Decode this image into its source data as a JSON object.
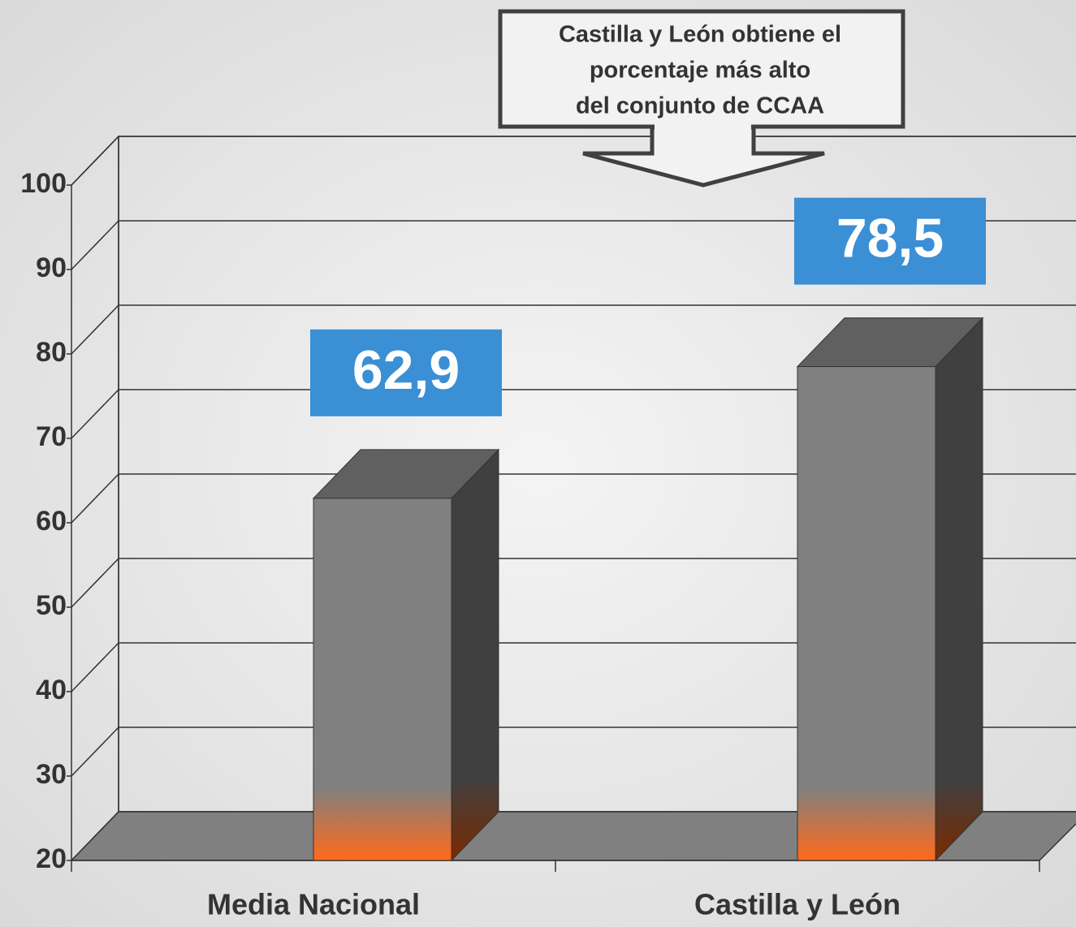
{
  "chart_data": {
    "type": "bar3d",
    "annotation": [
      "Castilla y León obtiene el",
      "porcentaje más alto",
      "del conjunto de CCAA"
    ],
    "categories": [
      "Media Nacional",
      "Castilla y León"
    ],
    "values": [
      62.9,
      78.5
    ],
    "value_labels": [
      "62,9",
      "78,5"
    ],
    "color": "#808080",
    "label_color": "#3a8fd5",
    "ylim": [
      20,
      100
    ],
    "yticks": [
      20,
      30,
      40,
      50,
      60,
      70,
      80,
      90,
      100
    ],
    "grid": true
  }
}
